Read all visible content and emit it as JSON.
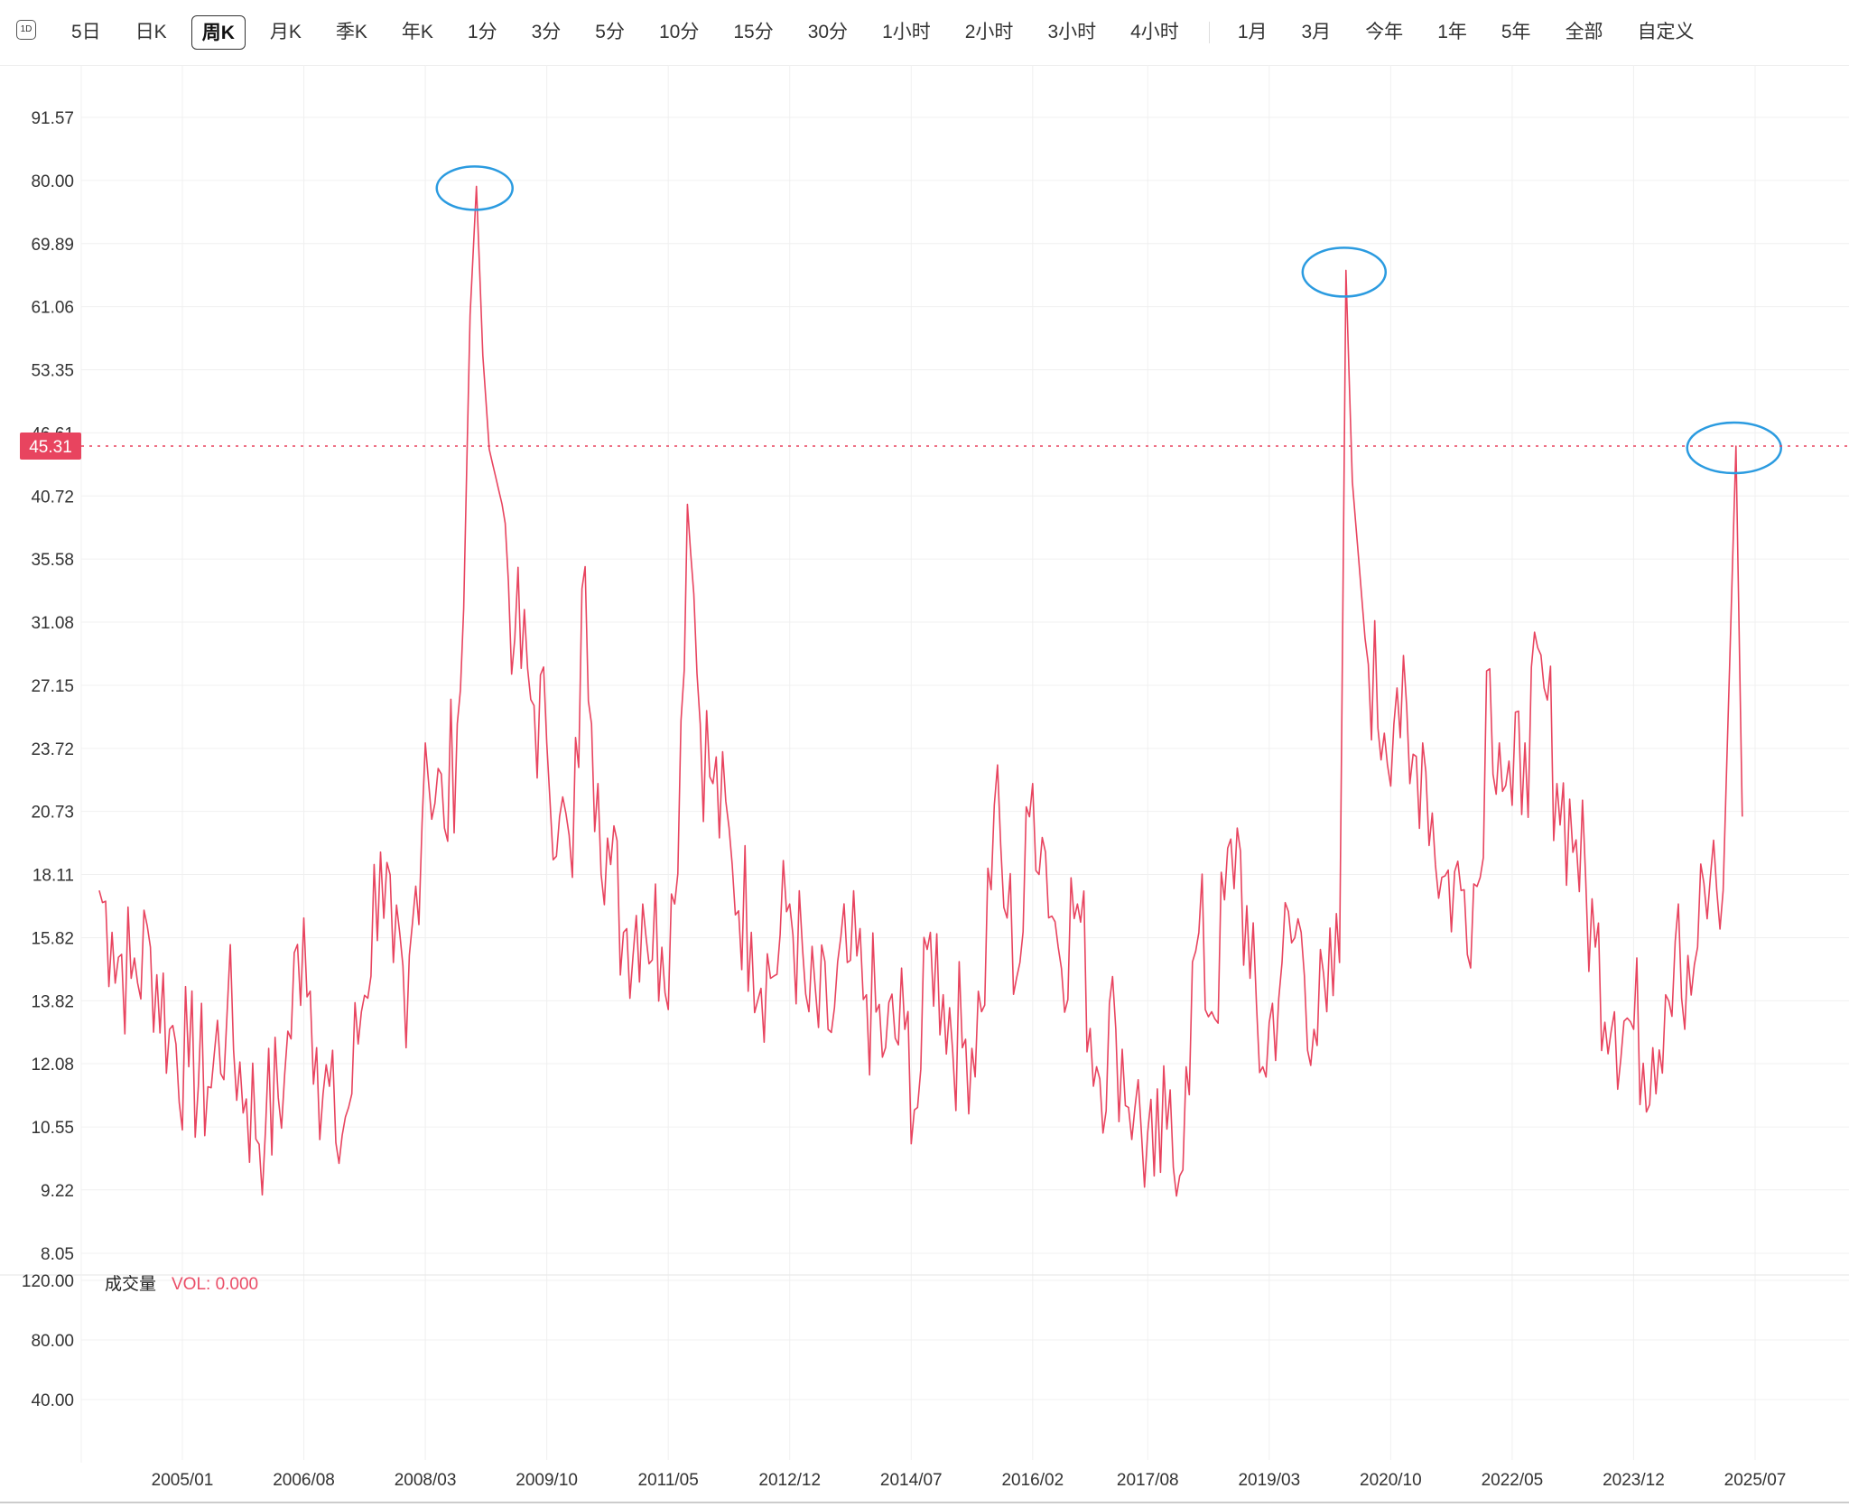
{
  "toolbar": {
    "interval_icon": "1D",
    "periods": [
      "5日",
      "日K",
      "周K",
      "月K",
      "季K",
      "年K",
      "1分",
      "3分",
      "5分",
      "10分",
      "15分",
      "30分",
      "1小时",
      "2小时",
      "3小时",
      "4小时"
    ],
    "active_period": "周K",
    "ranges": [
      "1月",
      "3月",
      "今年",
      "1年",
      "5年",
      "全部",
      "自定义"
    ]
  },
  "colors": {
    "line": "#e8445f",
    "marker": "#2b9be0",
    "grid": "#f0f0f0"
  },
  "chart_data": {
    "type": "line",
    "title": "",
    "xlabel": "",
    "ylabel": "",
    "y_ticks": [
      "91.57",
      "80.00",
      "69.89",
      "61.06",
      "53.35",
      "46.61",
      "40.72",
      "35.58",
      "31.08",
      "27.15",
      "23.72",
      "20.73",
      "18.11",
      "15.82",
      "13.82",
      "12.08",
      "10.55",
      "9.22",
      "8.05"
    ],
    "y_scale": "log",
    "ylim": [
      8.05,
      91.57
    ],
    "x_ticks": [
      "2005/01",
      "2006/08",
      "2008/03",
      "2009/10",
      "2011/05",
      "2012/12",
      "2014/07",
      "2016/02",
      "2017/08",
      "2019/03",
      "2020/10",
      "2022/05",
      "2023/12",
      "2025/07"
    ],
    "xlim": [
      "2003-12",
      "2025-09"
    ],
    "current_value": "45.31",
    "grid": true,
    "annotations": [
      "circle at 2008-11 peak",
      "circle at 2020-03 peak",
      "circle at 2025-04 peak"
    ],
    "series": [
      {
        "x": [
          "2003-12",
          "2004-02",
          "2004-05",
          "2004-08",
          "2004-11",
          "2005-02",
          "2005-05",
          "2005-08",
          "2005-11",
          "2006-02",
          "2006-05",
          "2006-08",
          "2006-10",
          "2007-01",
          "2007-03",
          "2007-05",
          "2007-08",
          "2007-10",
          "2007-12",
          "2008-03",
          "2008-06",
          "2008-08",
          "2008-09",
          "2008-10",
          "2008-11",
          "2008-12",
          "2009-01",
          "2009-03",
          "2009-05",
          "2009-08",
          "2009-10",
          "2009-12",
          "2010-02",
          "2010-04",
          "2010-05",
          "2010-06",
          "2010-08",
          "2010-10",
          "2011-01",
          "2011-04",
          "2011-06",
          "2011-08",
          "2011-09",
          "2011-10",
          "2011-12",
          "2012-03",
          "2012-06",
          "2012-09",
          "2012-12",
          "2013-03",
          "2013-06",
          "2013-09",
          "2013-12",
          "2014-03",
          "2014-06",
          "2014-08",
          "2014-10",
          "2014-12",
          "2015-03",
          "2015-06",
          "2015-08",
          "2015-10",
          "2015-12",
          "2016-02",
          "2016-04",
          "2016-06",
          "2016-09",
          "2016-12",
          "2017-03",
          "2017-06",
          "2017-09",
          "2017-11",
          "2018-01",
          "2018-02",
          "2018-04",
          "2018-06",
          "2018-10",
          "2018-12",
          "2019-02",
          "2019-05",
          "2019-08",
          "2019-10",
          "2019-12",
          "2020-02",
          "2020-03",
          "2020-04",
          "2020-06",
          "2020-09",
          "2020-11",
          "2021-01",
          "2021-03",
          "2021-06",
          "2021-09",
          "2021-12",
          "2022-01",
          "2022-03",
          "2022-05",
          "2022-07",
          "2022-10",
          "2022-12",
          "2023-03",
          "2023-06",
          "2023-09",
          "2023-12",
          "2024-03",
          "2024-05",
          "2024-07",
          "2024-08",
          "2024-10",
          "2024-12",
          "2025-02",
          "2025-04",
          "2025-05"
        ],
        "y": [
          17.5,
          16.0,
          14.5,
          15.5,
          13.0,
          12.0,
          11.5,
          13.5,
          11.2,
          10.5,
          11.8,
          16.5,
          12.5,
          10.2,
          11.0,
          13.5,
          19.0,
          15.0,
          12.5,
          24.0,
          20.0,
          25.0,
          32.0,
          60.0,
          79.0,
          55.0,
          45.0,
          40.0,
          30.0,
          26.0,
          24.0,
          20.5,
          18.0,
          35.0,
          25.0,
          22.0,
          18.5,
          16.0,
          17.0,
          15.5,
          17.0,
          40.0,
          33.0,
          25.0,
          22.0,
          18.5,
          16.0,
          14.5,
          17.0,
          13.5,
          13.0,
          15.0,
          14.0,
          12.5,
          13.0,
          11.0,
          16.0,
          14.0,
          12.5,
          13.5,
          21.0,
          16.5,
          15.0,
          22.0,
          19.0,
          15.5,
          17.0,
          12.0,
          13.0,
          11.0,
          9.5,
          10.5,
          9.5,
          12.0,
          16.0,
          13.5,
          20.0,
          14.5,
          12.0,
          15.0,
          16.0,
          13.0,
          13.5,
          15.0,
          66.0,
          42.0,
          30.0,
          24.5,
          27.0,
          22.0,
          24.0,
          18.0,
          17.5,
          18.0,
          28.0,
          24.0,
          21.0,
          24.0,
          27.0,
          22.0,
          19.5,
          15.5,
          13.5,
          13.0,
          12.5,
          14.0,
          17.0,
          13.0,
          15.5,
          18.0,
          17.5,
          45.31,
          20.5
        ]
      }
    ]
  },
  "volume": {
    "label": "成交量",
    "value_text": "VOL: 0.000",
    "y_ticks": [
      "120.00",
      "80.00",
      "40.00"
    ]
  }
}
